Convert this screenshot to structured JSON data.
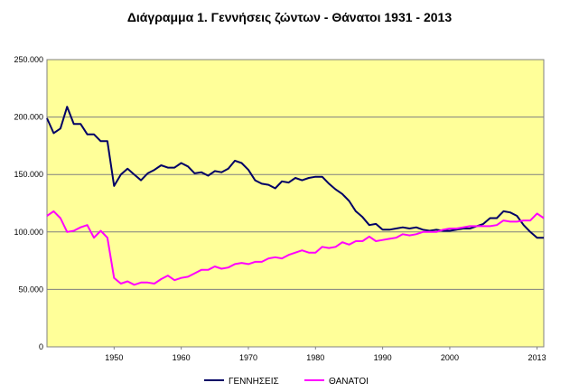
{
  "chart_data": {
    "type": "line",
    "title": "Διάγραμμα 1.  Γεννήσεις ζώντων - Θάνατοι 1931 - 2013",
    "xlabel": "",
    "ylabel": "",
    "xlim": [
      1940,
      2014
    ],
    "ylim": [
      0,
      250000
    ],
    "y_ticks": [
      0,
      50000,
      100000,
      150000,
      200000,
      250000
    ],
    "y_tick_labels": [
      "0",
      "50.000",
      "100.000",
      "150.000",
      "200.000",
      "250.000"
    ],
    "x_ticks": [
      1950,
      1960,
      1970,
      1980,
      1990,
      2000,
      2013
    ],
    "x_tick_labels": [
      "1950",
      "1960",
      "1970",
      "1980",
      "1990",
      "2000",
      "2013"
    ],
    "grid": true,
    "legend_position": "bottom",
    "plot_background": "#FFFF99",
    "x": [
      1940,
      1941,
      1942,
      1943,
      1944,
      1945,
      1946,
      1947,
      1948,
      1949,
      1950,
      1951,
      1952,
      1953,
      1954,
      1955,
      1956,
      1957,
      1958,
      1959,
      1960,
      1961,
      1962,
      1963,
      1964,
      1965,
      1966,
      1967,
      1968,
      1969,
      1970,
      1971,
      1972,
      1973,
      1974,
      1975,
      1976,
      1977,
      1978,
      1979,
      1980,
      1981,
      1982,
      1983,
      1984,
      1985,
      1986,
      1987,
      1988,
      1989,
      1990,
      1991,
      1992,
      1993,
      1994,
      1995,
      1996,
      1997,
      1998,
      1999,
      2000,
      2001,
      2002,
      2003,
      2004,
      2005,
      2006,
      2007,
      2008,
      2009,
      2010,
      2011,
      2012,
      2013,
      2014
    ],
    "series": [
      {
        "name": "ΓΕΝΝΗΣΕΙΣ",
        "color": "#000066",
        "values": [
          199000,
          186000,
          190000,
          209000,
          194000,
          194000,
          185000,
          185000,
          179000,
          179000,
          140000,
          150000,
          155000,
          150000,
          145000,
          151000,
          154000,
          158000,
          156000,
          156000,
          160000,
          157000,
          151000,
          152000,
          149000,
          153000,
          152000,
          155000,
          162000,
          160000,
          154000,
          145000,
          142000,
          141000,
          138000,
          144000,
          143000,
          147000,
          145000,
          147000,
          148000,
          148000,
          142000,
          137000,
          133000,
          127000,
          118000,
          113000,
          106000,
          107000,
          102000,
          102000,
          103000,
          104000,
          103000,
          104000,
          102000,
          101000,
          102000,
          101000,
          101000,
          102000,
          103000,
          103000,
          105000,
          107000,
          112000,
          112000,
          118000,
          117000,
          114000,
          106000,
          100000,
          95000,
          95000
        ]
      },
      {
        "name": "ΘΑΝΑΤΟΙ",
        "color": "#FF00FF",
        "values": [
          114000,
          118000,
          112000,
          100000,
          101000,
          104000,
          106000,
          95000,
          101000,
          95000,
          60000,
          55000,
          57000,
          54000,
          56000,
          56000,
          55000,
          59000,
          62000,
          58000,
          60000,
          61000,
          64000,
          67000,
          67000,
          70000,
          68000,
          69000,
          72000,
          73000,
          72000,
          74000,
          74000,
          77000,
          78000,
          77000,
          80000,
          82000,
          84000,
          82000,
          82000,
          87000,
          86000,
          87000,
          91000,
          89000,
          92000,
          92000,
          96000,
          92000,
          93000,
          94000,
          95000,
          98000,
          97000,
          98000,
          100000,
          100000,
          100000,
          102000,
          103000,
          103000,
          104000,
          105000,
          105000,
          105000,
          105000,
          106000,
          110000,
          109000,
          109000,
          110000,
          110000,
          116000,
          112000
        ]
      }
    ]
  }
}
